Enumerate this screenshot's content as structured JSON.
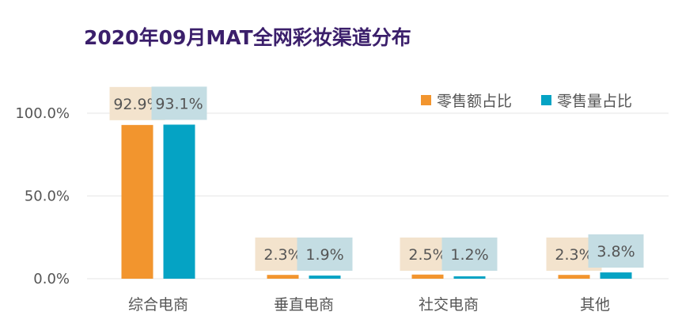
{
  "title": "2020年09月MAT全网彩妆渠道分布",
  "colors": {
    "title": "#3b1f6b",
    "axis_text": "#555555",
    "gridline": "#e6e6e6",
    "series_0": "#f2952e",
    "series_1": "#05a3c4",
    "label_bg_0": "#f3e3cd",
    "label_bg_1": "#c4dde3"
  },
  "chart_data": {
    "type": "bar",
    "title": "2020年09月MAT全网彩妆渠道分布",
    "categories": [
      "综合电商",
      "垂直电商",
      "社交电商",
      "其他"
    ],
    "series": [
      {
        "name": "零售额占比",
        "values": [
          92.9,
          2.3,
          2.5,
          2.3
        ],
        "labels": [
          "92.9%",
          "2.3%",
          "2.5%",
          "2.3%"
        ]
      },
      {
        "name": "零售量占比",
        "values": [
          93.1,
          1.9,
          1.2,
          3.8
        ],
        "labels": [
          "93.1%",
          "1.9%",
          "1.2%",
          "3.8%"
        ]
      }
    ],
    "yticks": [
      0,
      50,
      100
    ],
    "ytick_labels": [
      "0.0%",
      "50.0%",
      "100.0%"
    ],
    "ylim": [
      0,
      100
    ],
    "legend_position": "top-right",
    "grid": true,
    "xlabel": "",
    "ylabel": ""
  }
}
